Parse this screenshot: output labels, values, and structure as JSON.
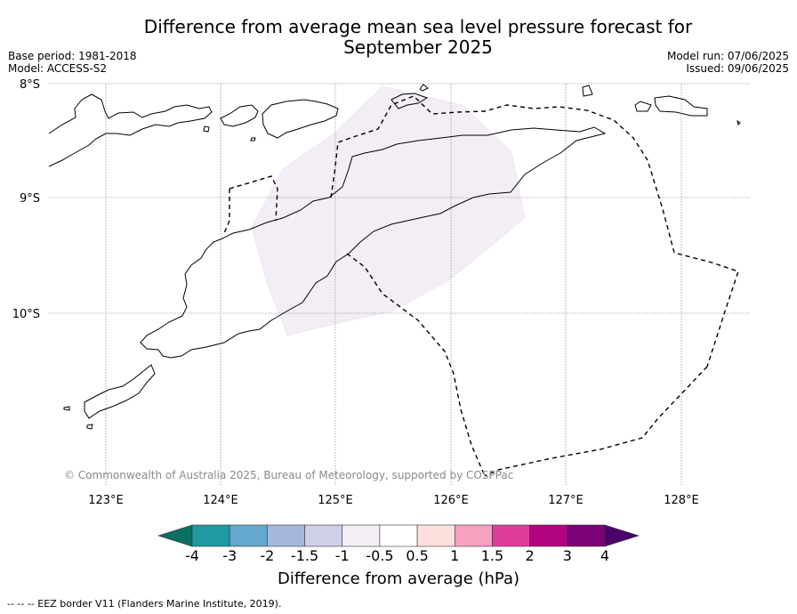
{
  "header": {
    "title_line1": "Difference from average mean sea level pressure forecast for",
    "title_line2": "September 2025",
    "base_period": "Base period: 1981-2018",
    "model": "Model: ACCESS-S2",
    "model_run": "Model run: 07/06/2025",
    "issued": "Issued: 09/06/2025"
  },
  "map": {
    "lat_labels": [
      "8°S",
      "9°S",
      "10°S"
    ],
    "lon_labels": [
      "123°E",
      "124°E",
      "125°E",
      "126°E",
      "127°E",
      "128°E"
    ],
    "gridlines": true,
    "copyright": "© Commonwealth of Australia 2025, Bureau of Meteorology, supported by COSPPac",
    "anomaly_fill_color": "#f3edf5",
    "anomaly_range_hPa": [
      -1,
      -0.5
    ]
  },
  "colorbar": {
    "ticks": [
      "-4",
      "-3",
      "-2",
      "-1.5",
      "-1",
      "-0.5",
      "0.5",
      "1",
      "1.5",
      "2",
      "3",
      "4"
    ],
    "colors": [
      "#0d6e63",
      "#1e9aa0",
      "#63a8cf",
      "#a5b8dc",
      "#cdd0e6",
      "#f3edf5",
      "#ffffff",
      "#fde0de",
      "#f7a0c0",
      "#de3d9c",
      "#b3047f",
      "#7a0177",
      "#4b006b"
    ],
    "label": "Difference from average (hPa)"
  },
  "footer": {
    "legend": "--  --  -- EEZ border V11 (Flanders Marine Institute, 2019)."
  }
}
